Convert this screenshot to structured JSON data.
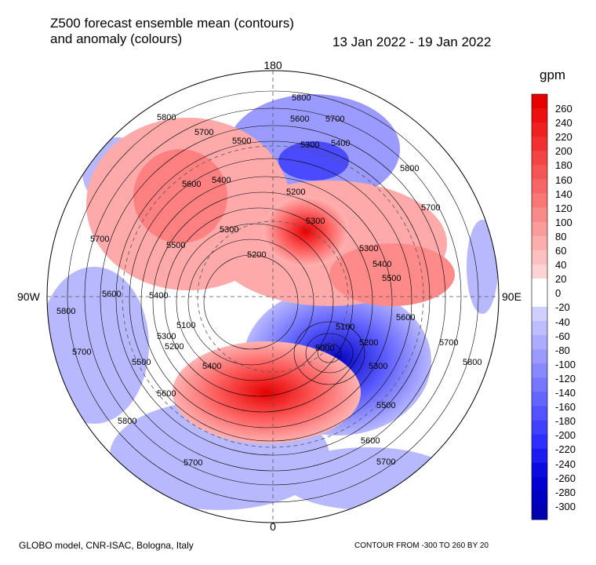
{
  "title_line1": "Z500 forecast ensemble mean (contours)",
  "title_line2": "and anomaly (colours)",
  "dates": "13 Jan 2022 - 19 Jan 2022",
  "unit": "gpm",
  "footer_left": "GLOBO model, CNR-ISAC, Bologna, Italy",
  "footer_right": "CONTOUR FROM -300 TO 260 BY 20",
  "meridian_labels": {
    "top": "180",
    "bottom": "0",
    "left": "90W",
    "right": "90E"
  },
  "contour_labels": [
    "5800",
    "5700",
    "5600",
    "5500",
    "5400",
    "5300",
    "5200",
    "5100",
    "5000"
  ],
  "colorbar_labels": [
    "260",
    "240",
    "220",
    "200",
    "180",
    "160",
    "140",
    "120",
    "100",
    "80",
    "60",
    "40",
    "20",
    "0",
    "-20",
    "-40",
    "-60",
    "-80",
    "-100",
    "-120",
    "-140",
    "-160",
    "-180",
    "-200",
    "-220",
    "-240",
    "-260",
    "-280",
    "-300"
  ],
  "colors": {
    "strong_red": "#e60000",
    "light_red": "#ffb3b3",
    "strong_blue": "#0000d0",
    "light_blue": "#b8b8ff"
  }
}
